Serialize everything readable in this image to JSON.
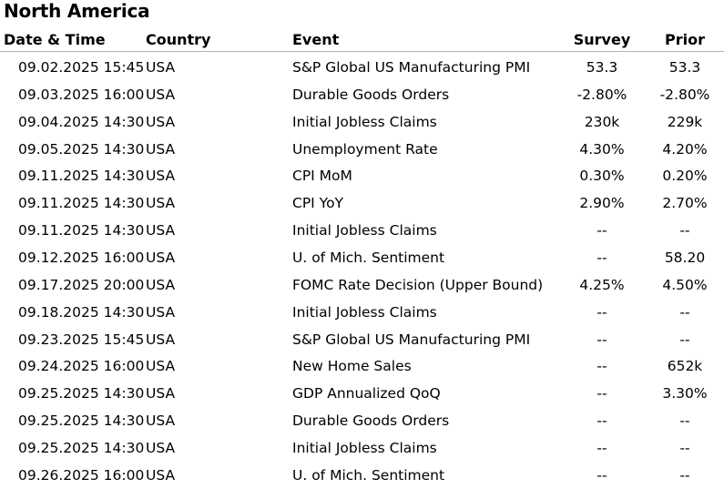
{
  "title": "North America",
  "headers": {
    "date_time": "Date & Time",
    "country": "Country",
    "event": "Event",
    "survey": "Survey",
    "prior": "Prior"
  },
  "rows": [
    {
      "date_time": "09.02.2025 15:45",
      "country": "USA",
      "event": "S&P Global US Manufacturing PMI",
      "survey": "53.3",
      "prior": "53.3"
    },
    {
      "date_time": "09.03.2025 16:00",
      "country": "USA",
      "event": "Durable Goods Orders",
      "survey": "-2.80%",
      "prior": "-2.80%"
    },
    {
      "date_time": "09.04.2025 14:30",
      "country": "USA",
      "event": "Initial Jobless Claims",
      "survey": "230k",
      "prior": "229k"
    },
    {
      "date_time": "09.05.2025 14:30",
      "country": "USA",
      "event": "Unemployment Rate",
      "survey": "4.30%",
      "prior": "4.20%"
    },
    {
      "date_time": "09.11.2025 14:30",
      "country": "USA",
      "event": "CPI MoM",
      "survey": "0.30%",
      "prior": "0.20%"
    },
    {
      "date_time": "09.11.2025 14:30",
      "country": "USA",
      "event": "CPI YoY",
      "survey": "2.90%",
      "prior": "2.70%"
    },
    {
      "date_time": "09.11.2025 14:30",
      "country": "USA",
      "event": "Initial Jobless Claims",
      "survey": "--",
      "prior": "--"
    },
    {
      "date_time": "09.12.2025 16:00",
      "country": "USA",
      "event": "U. of Mich. Sentiment",
      "survey": "--",
      "prior": "58.20"
    },
    {
      "date_time": "09.17.2025 20:00",
      "country": "USA",
      "event": "FOMC Rate Decision (Upper Bound)",
      "survey": "4.25%",
      "prior": "4.50%"
    },
    {
      "date_time": "09.18.2025 14:30",
      "country": "USA",
      "event": "Initial Jobless Claims",
      "survey": "--",
      "prior": "--"
    },
    {
      "date_time": "09.23.2025 15:45",
      "country": "USA",
      "event": "S&P Global US Manufacturing PMI",
      "survey": "--",
      "prior": "--"
    },
    {
      "date_time": "09.24.2025 16:00",
      "country": "USA",
      "event": "New Home Sales",
      "survey": "--",
      "prior": "652k"
    },
    {
      "date_time": "09.25.2025 14:30",
      "country": "USA",
      "event": "GDP Annualized QoQ",
      "survey": "--",
      "prior": "3.30%"
    },
    {
      "date_time": "09.25.2025 14:30",
      "country": "USA",
      "event": "Durable Goods Orders",
      "survey": "--",
      "prior": "--"
    },
    {
      "date_time": "09.25.2025 14:30",
      "country": "USA",
      "event": "Initial Jobless Claims",
      "survey": "--",
      "prior": "--"
    },
    {
      "date_time": "09.26.2025 16:00",
      "country": "USA",
      "event": "U. of Mich. Sentiment",
      "survey": "--",
      "prior": "--"
    }
  ]
}
